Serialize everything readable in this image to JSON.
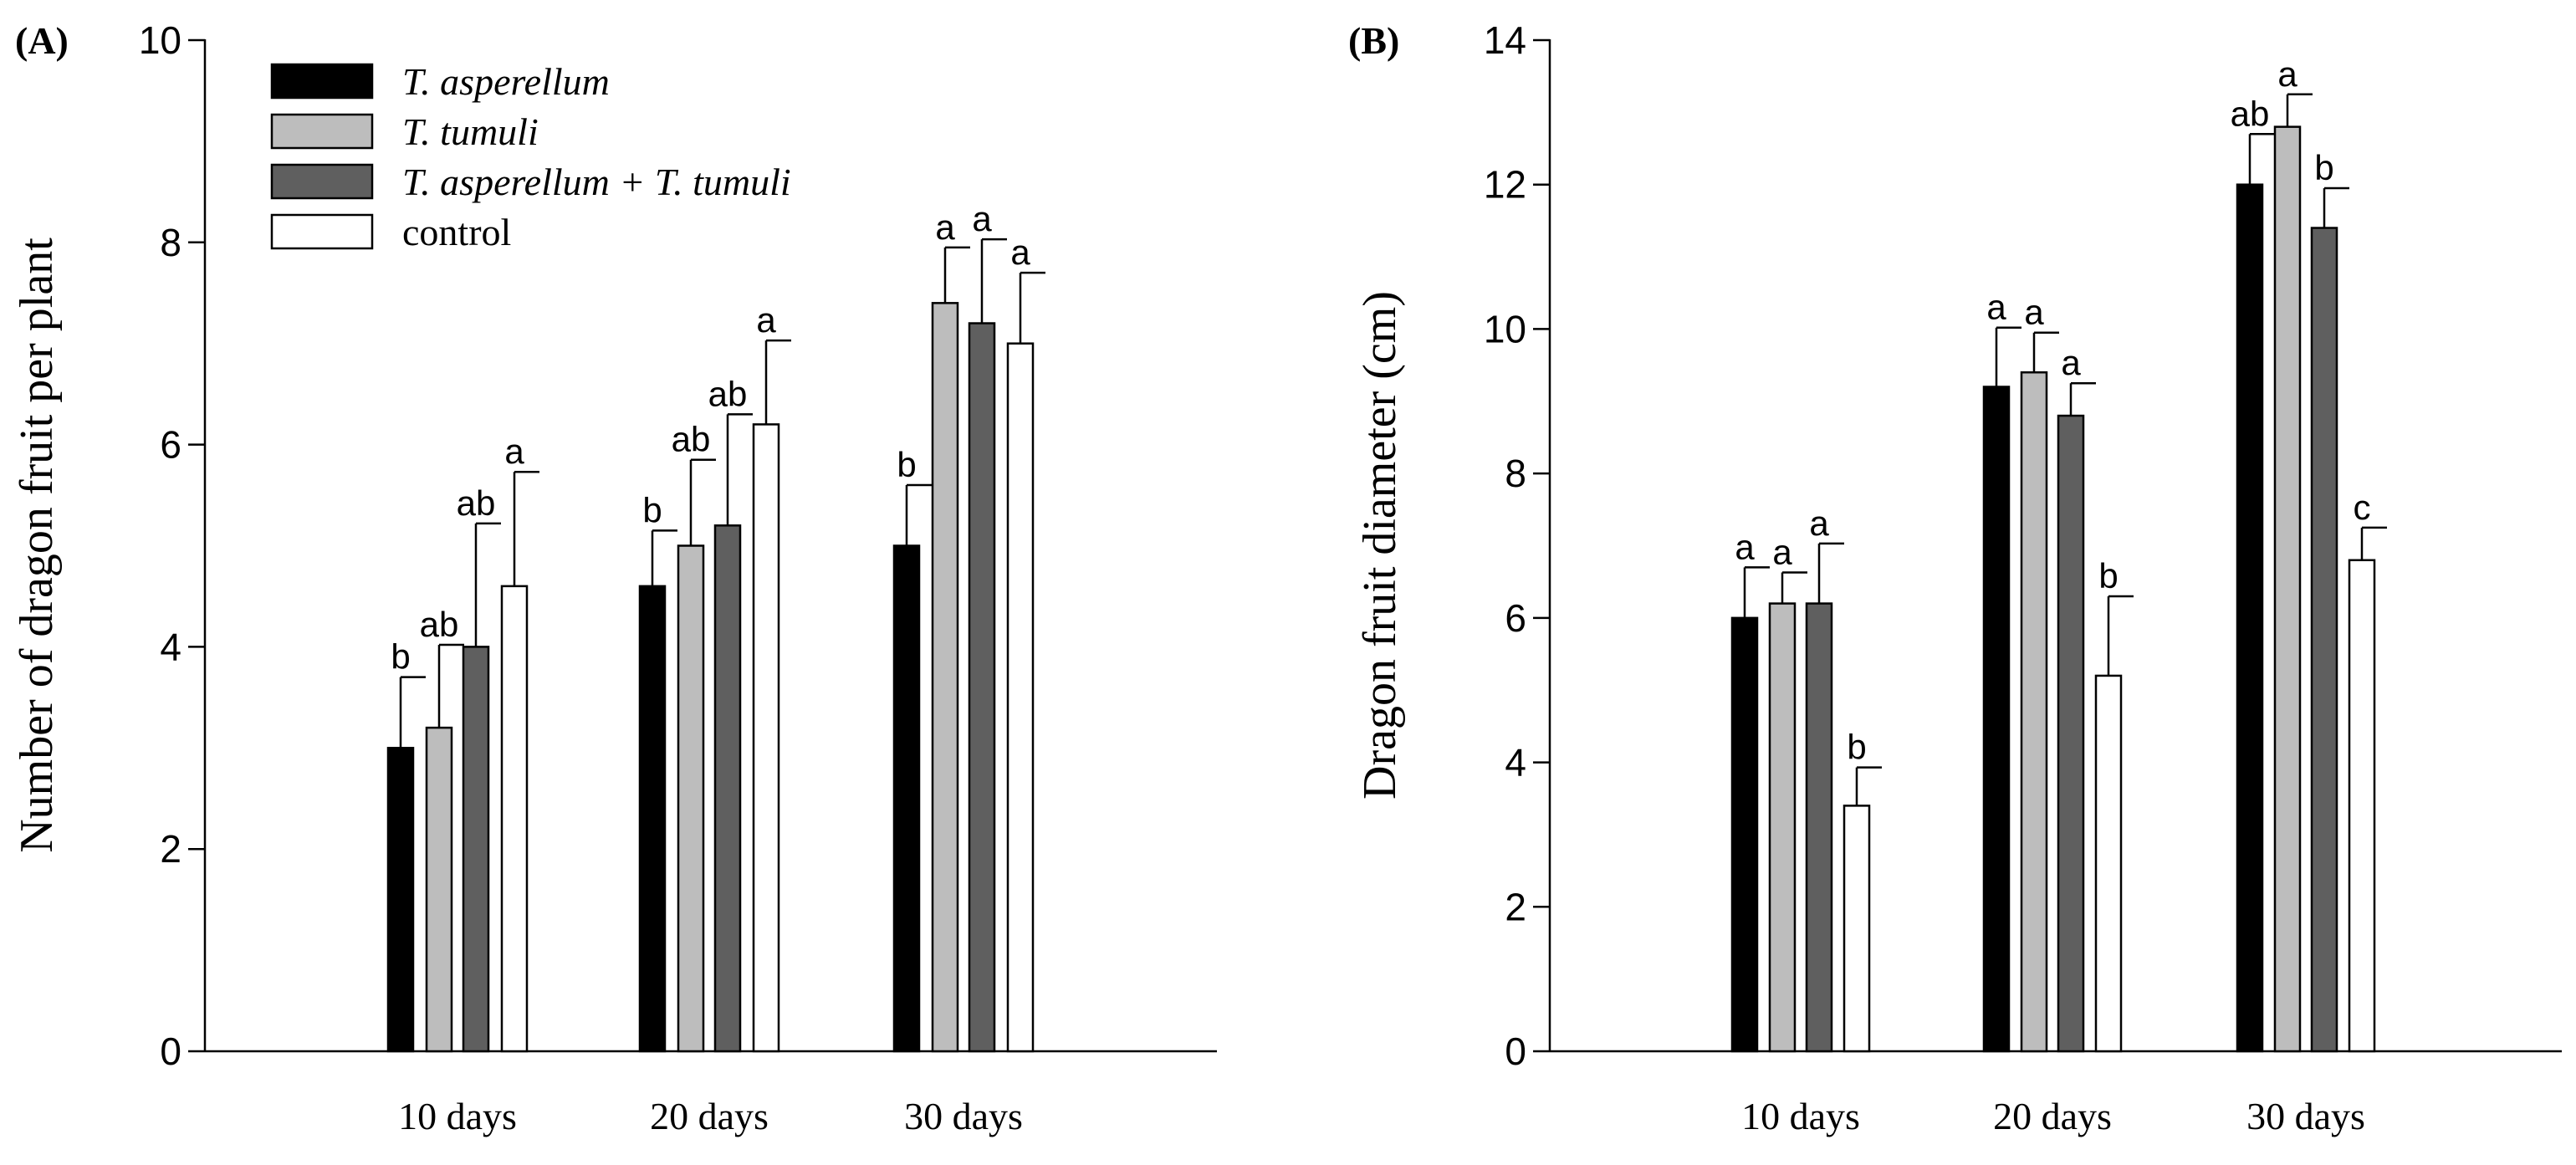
{
  "colors": {
    "T. asperellum": "#000000",
    "T. tumuli": "#bdbdbd",
    "T. asperellum + T. tumuli": "#5f5f5f",
    "control": "#ffffff"
  },
  "legend": {
    "placement": "top-left of panel A",
    "entries": [
      {
        "label": "T. asperellum",
        "italic": true
      },
      {
        "label": "T. tumuli",
        "italic": true
      },
      {
        "label": "T. asperellum + T. tumuli",
        "italic": true
      },
      {
        "label": "control",
        "italic": false
      }
    ]
  },
  "chart_data": [
    {
      "type": "bar",
      "panel_label": "(A)",
      "title": "",
      "xlabel": "",
      "ylabel": "Number of dragon fruit per plant",
      "ylim": [
        0,
        10
      ],
      "yticks": [
        0,
        2,
        4,
        6,
        8,
        10
      ],
      "grid": false,
      "categories": [
        "10 days",
        "20 days",
        "30 days"
      ],
      "series": [
        {
          "name": "T. asperellum",
          "values": [
            3.0,
            4.6,
            5.0
          ],
          "errors": [
            0.7,
            0.55,
            0.6
          ],
          "letters": [
            "b",
            "b",
            "b"
          ]
        },
        {
          "name": "T. tumuli",
          "values": [
            3.2,
            5.0,
            7.4
          ],
          "errors": [
            0.82,
            0.85,
            0.55
          ],
          "letters": [
            "ab",
            "ab",
            "a"
          ]
        },
        {
          "name": "T. asperellum + T. tumuli",
          "values": [
            4.0,
            5.2,
            7.2
          ],
          "errors": [
            1.22,
            1.1,
            0.83
          ],
          "letters": [
            "ab",
            "ab",
            "a"
          ]
        },
        {
          "name": "control",
          "values": [
            4.6,
            6.2,
            7.0
          ],
          "errors": [
            1.13,
            0.83,
            0.7
          ],
          "letters": [
            "a",
            "a",
            "a"
          ]
        }
      ]
    },
    {
      "type": "bar",
      "panel_label": "(B)",
      "title": "",
      "xlabel": "",
      "ylabel": "Dragon fruit diameter (cm)",
      "ylim": [
        0,
        14
      ],
      "yticks": [
        0,
        2,
        4,
        6,
        8,
        10,
        12,
        14
      ],
      "grid": false,
      "categories": [
        "10 days",
        "20 days",
        "30 days"
      ],
      "series": [
        {
          "name": "T. asperellum",
          "values": [
            6.0,
            9.2,
            12.0
          ],
          "errors": [
            0.7,
            0.82,
            0.7
          ],
          "letters": [
            "a",
            "a",
            "ab"
          ]
        },
        {
          "name": "T. tumuli",
          "values": [
            6.2,
            9.4,
            12.8
          ],
          "errors": [
            0.43,
            0.55,
            0.45
          ],
          "letters": [
            "a",
            "a",
            "a"
          ]
        },
        {
          "name": "T. asperellum + T. tumuli",
          "values": [
            6.2,
            8.8,
            11.4
          ],
          "errors": [
            0.83,
            0.45,
            0.55
          ],
          "letters": [
            "a",
            "a",
            "b"
          ]
        },
        {
          "name": "control",
          "values": [
            3.4,
            5.2,
            6.8
          ],
          "errors": [
            0.53,
            1.1,
            0.45
          ],
          "letters": [
            "b",
            "b",
            "c"
          ]
        }
      ]
    }
  ]
}
